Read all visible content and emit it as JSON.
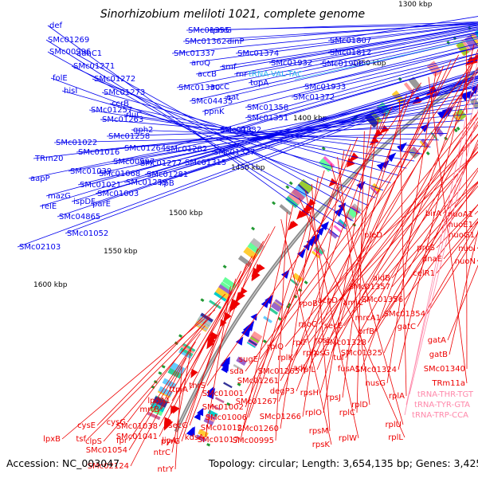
{
  "title": "Sinorhizobium meliloti 1021, complete genome",
  "footer": {
    "accession": "Accession: NC_003047",
    "summary": "Topology: circular; Length: 3,654,135 bp; Genes: 3,425"
  },
  "colors": {
    "forward": "#0000ee",
    "reverse": "#ee0000",
    "trna_forward": "#33bbee",
    "trna_reverse": "#ff88aa",
    "backbone": "#888888"
  },
  "ticks": [
    "1300 kbp",
    "1350 kbp",
    "1400 kbp",
    "1450 kbp",
    "1500 kbp",
    "1550 kbp",
    "1600 kbp"
  ],
  "forward_labels": [
    "def",
    "SMc01269",
    "SMc00996",
    "adhC1",
    "SMc01271",
    "folE",
    "SMc01272",
    "hisI",
    "SMc01273",
    "ccrB",
    "SMc01257",
    "rluC",
    "SMc01263",
    "gph2",
    "SMc01022",
    "SMc01258",
    "SMc01264",
    "SMc01016",
    "TRm20",
    "SMc00997",
    "SMc01039",
    "SMc01277",
    "SMc01068",
    "aapP",
    "SMc01021",
    "SMc01259",
    "SMc01003",
    "mazG",
    "ispDF",
    "relE",
    "parE",
    "SMc04865",
    "SMc01052",
    "SMc02103",
    "SMc01355",
    "rpmG",
    "SMc01362",
    "dinP",
    "SMc01337",
    "SMc01374",
    "aroQ",
    "smf",
    "SMc01932",
    "accB",
    "rnr",
    "SMc01330",
    "accC",
    "topA",
    "SMc04435",
    "aat",
    "ppnK",
    "SMc01358",
    "SMc01351",
    "SMc01332",
    "rne",
    "SMc01282",
    "SMc01327",
    "SMc01315",
    "SMc01281",
    "lipB",
    "SMc01807",
    "SMc01812",
    "SMc01908",
    "SMc01933",
    "SMc01372"
  ],
  "forward_trna": [
    "tRNA-VAL-TAC"
  ],
  "reverse_labels": [
    "nuoA1",
    "nuoE1",
    "birA",
    "nuoG1",
    "proS",
    "nuoI",
    "pleD",
    "dnaE",
    "nuoN",
    "celR1",
    "aidB",
    "SMc01357",
    "SMc01356",
    "acpD",
    "amiC",
    "SMc01354",
    "rpoB",
    "mrcA1",
    "gatC",
    "rpoC",
    "secE",
    "prfB",
    "gatA",
    "rplQ",
    "rplF",
    "rpsL",
    "SMc01328",
    "rplX",
    "tuf",
    "SMc01325",
    "gatB",
    "sugE",
    "rpsG",
    "rplK",
    "sda",
    "SMc01265",
    "fusA1",
    "SMc01324",
    "SMc01340",
    "SMc01261",
    "adk",
    "rplL",
    "nusG",
    "TRm11a",
    "thrS",
    "degP3",
    "rpsH",
    "rplA",
    "SMc01001",
    "SMc01267",
    "rpsJ",
    "rplO",
    "rplC",
    "SMc01002",
    "SMc01006",
    "SMc01266",
    "rplD",
    "rplU",
    "SMc01012",
    "SMc01260",
    "rpsM",
    "rplW",
    "rplL",
    "SMc01017",
    "SMc00995",
    "rpsK",
    "ttpiA",
    "lpdA1",
    "mrtB",
    "secG",
    "SMc01038",
    "lipA",
    "SMc01041",
    "pyrG",
    "kdsA",
    "cysE",
    "cysG",
    "lpxB",
    "tsf",
    "clpS",
    "fpr",
    "SMc01054",
    "ntrC",
    "SMc02124",
    "ntrY"
  ],
  "reverse_trna": [
    "tRNA-THR-TGT",
    "tRNA-TYR-GTA",
    "tRNA-TRP-CCA"
  ]
}
